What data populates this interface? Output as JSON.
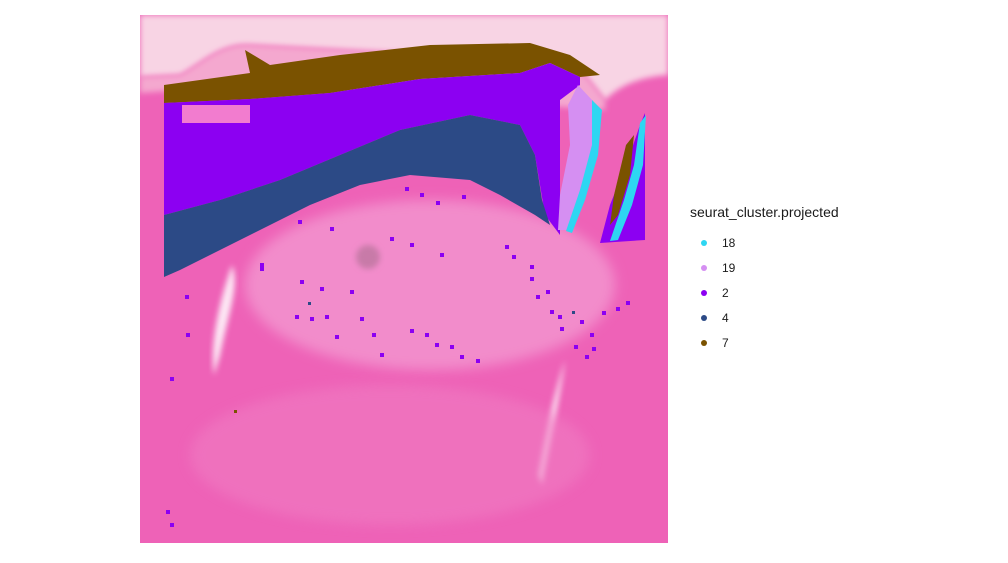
{
  "chart_data": {
    "type": "scatter",
    "title": "",
    "xlabel": "",
    "ylabel": "",
    "background": "H&E tissue section image",
    "legend": {
      "title": "seurat_cluster.projected",
      "placement": "right"
    },
    "series": [
      {
        "name": "18",
        "color": "#2ed6f2"
      },
      {
        "name": "19",
        "color": "#d58ff2"
      },
      {
        "name": "2",
        "color": "#8c00f2"
      },
      {
        "name": "4",
        "color": "#2c4a86"
      },
      {
        "name": "7",
        "color": "#7a5200"
      }
    ]
  }
}
